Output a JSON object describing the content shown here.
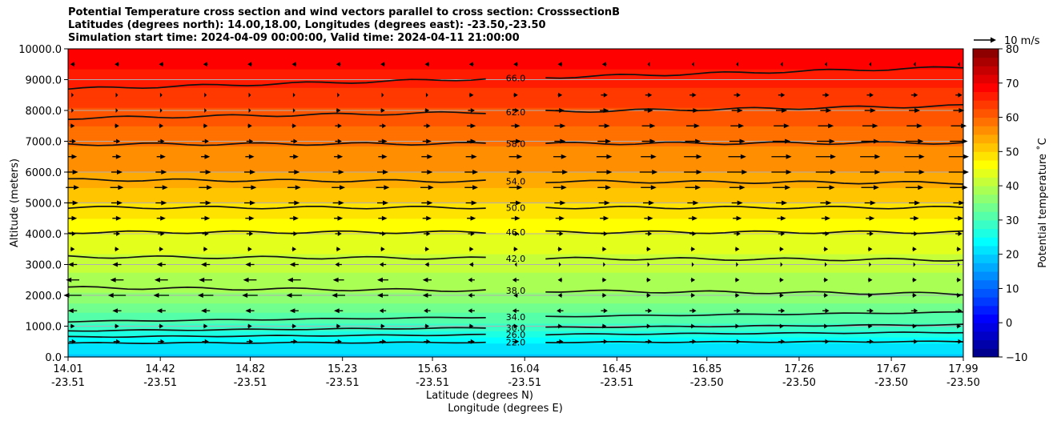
{
  "chart_data": {
    "type": "contour",
    "title_lines": [
      "Potential Temperature cross section and wind vectors parallel to cross section: CrosssectionB",
      "Latitudes (degrees north): 14.00,18.00, Longitudes (degrees east): -23.50,-23.50",
      "Simulation start time: 2024-04-09 00:00:00, Valid time: 2024-04-11 21:00:00"
    ],
    "ylabel": "Altitude (meters)",
    "xlabel_lat": "Latitude (degrees N)",
    "xlabel_lon": "Longitude (degrees E)",
    "ylim": [
      0,
      10000
    ],
    "xlim": [
      14.01,
      17.99
    ],
    "y_ticks": [
      {
        "value": 0,
        "label": "0.0"
      },
      {
        "value": 1000,
        "label": "1000.0"
      },
      {
        "value": 2000,
        "label": "2000.0"
      },
      {
        "value": 3000,
        "label": "3000.0"
      },
      {
        "value": 4000,
        "label": "4000.0"
      },
      {
        "value": 5000,
        "label": "5000.0"
      },
      {
        "value": 6000,
        "label": "6000.0"
      },
      {
        "value": 7000,
        "label": "7000.0"
      },
      {
        "value": 8000,
        "label": "8000.0"
      },
      {
        "value": 9000,
        "label": "9000.0"
      },
      {
        "value": 10000,
        "label": "10000.0"
      }
    ],
    "x_ticks": [
      {
        "value": 14.01,
        "lat": "14.01",
        "lon": "-23.51"
      },
      {
        "value": 14.42,
        "lat": "14.42",
        "lon": "-23.51"
      },
      {
        "value": 14.82,
        "lat": "14.82",
        "lon": "-23.51"
      },
      {
        "value": 15.23,
        "lat": "15.23",
        "lon": "-23.51"
      },
      {
        "value": 15.63,
        "lat": "15.63",
        "lon": "-23.51"
      },
      {
        "value": 16.04,
        "lat": "16.04",
        "lon": "-23.51"
      },
      {
        "value": 16.45,
        "lat": "16.45",
        "lon": "-23.51"
      },
      {
        "value": 16.85,
        "lat": "16.85",
        "lon": "-23.50"
      },
      {
        "value": 17.26,
        "lat": "17.26",
        "lon": "-23.50"
      },
      {
        "value": 17.67,
        "lat": "17.67",
        "lon": "-23.50"
      },
      {
        "value": 17.99,
        "lat": "17.99",
        "lon": "-23.50"
      }
    ],
    "grid": "horizontal",
    "contours": [
      {
        "label": "22.0",
        "left_alt": 450,
        "right_alt": 500
      },
      {
        "label": "26.0",
        "left_alt": 650,
        "right_alt": 800
      },
      {
        "label": "30.0",
        "left_alt": 850,
        "right_alt": 1050
      },
      {
        "label": "34.0",
        "left_alt": 1150,
        "right_alt": 1450
      },
      {
        "label": "38.0",
        "left_alt": 2250,
        "right_alt": 2050
      },
      {
        "label": "42.0",
        "left_alt": 3250,
        "right_alt": 3150
      },
      {
        "label": "46.0",
        "left_alt": 4050,
        "right_alt": 4050
      },
      {
        "label": "50.0",
        "left_alt": 4850,
        "right_alt": 4850
      },
      {
        "label": "54.0",
        "left_alt": 5750,
        "right_alt": 5650
      },
      {
        "label": "58.0",
        "left_alt": 6900,
        "right_alt": 6950
      },
      {
        "label": "62.0",
        "left_alt": 7750,
        "right_alt": 8150
      },
      {
        "label": "66.0",
        "left_alt": 8700,
        "right_alt": 9400
      }
    ],
    "temperature_levels": [
      {
        "alt": 0,
        "temp": 19
      },
      {
        "alt": 500,
        "temp": 23
      },
      {
        "alt": 1000,
        "temp": 29
      },
      {
        "alt": 2000,
        "temp": 37
      },
      {
        "alt": 3000,
        "temp": 41
      },
      {
        "alt": 4000,
        "temp": 45
      },
      {
        "alt": 5000,
        "temp": 50
      },
      {
        "alt": 6000,
        "temp": 55
      },
      {
        "alt": 7000,
        "temp": 58
      },
      {
        "alt": 8000,
        "temp": 62
      },
      {
        "alt": 9000,
        "temp": 66
      },
      {
        "alt": 10000,
        "temp": 70
      }
    ],
    "terrain": {
      "center": 15.1,
      "half_width": 0.13,
      "peak_alt": 200
    },
    "wind_rows": [
      {
        "alt": 500,
        "u": [
          3,
          3,
          3,
          3,
          3,
          3,
          3,
          3,
          3,
          3,
          3,
          3,
          3,
          3,
          3,
          3,
          3,
          3,
          3,
          3,
          3
        ]
      },
      {
        "alt": 1000,
        "u": [
          2,
          2,
          2,
          2,
          2,
          2,
          2,
          2,
          2,
          2,
          2,
          2,
          2,
          2,
          2,
          2,
          2,
          2,
          2,
          2,
          2
        ]
      },
      {
        "alt": 1500,
        "u": [
          -4,
          -4,
          -4,
          -4,
          -4,
          -4,
          -4,
          -3,
          -3,
          -3,
          -3,
          -3,
          3,
          3,
          3,
          3,
          3,
          3,
          3,
          3,
          3
        ]
      },
      {
        "alt": 2000,
        "u": [
          -8,
          -8,
          -7,
          -7,
          -7,
          -7,
          -6,
          -5,
          -4,
          -3,
          -2,
          -2,
          2,
          2,
          2,
          2,
          2,
          2,
          2,
          2,
          2
        ]
      },
      {
        "alt": 2500,
        "u": [
          -6,
          -6,
          -6,
          -6,
          -6,
          -6,
          -5,
          -5,
          -4,
          -3,
          -3,
          -2,
          2,
          2,
          2,
          2,
          2,
          2,
          2,
          2,
          2
        ]
      },
      {
        "alt": 3000,
        "u": [
          -4,
          -4,
          -4,
          -4,
          -4,
          -4,
          -3,
          -3,
          -2,
          -2,
          -1,
          1,
          1,
          1,
          1,
          1,
          1,
          1,
          1,
          1,
          1
        ]
      },
      {
        "alt": 3500,
        "u": [
          2,
          2,
          2,
          2,
          2,
          2,
          2,
          2,
          2,
          2,
          2,
          2,
          2,
          2,
          2,
          2,
          2,
          2,
          2,
          2,
          2
        ]
      },
      {
        "alt": 4000,
        "u": [
          3,
          3,
          3,
          3,
          3,
          3,
          3,
          3,
          3,
          3,
          3,
          3,
          3,
          3,
          3,
          3,
          3,
          3,
          3,
          3,
          3
        ]
      },
      {
        "alt": 4500,
        "u": [
          4,
          4,
          4,
          4,
          4,
          4,
          4,
          4,
          4,
          4,
          4,
          4,
          4,
          4,
          4,
          4,
          4,
          4,
          4,
          4,
          4
        ]
      },
      {
        "alt": 5000,
        "u": [
          5,
          5,
          5,
          5,
          5,
          5,
          5,
          5,
          5,
          5,
          5,
          5,
          5,
          5,
          5,
          5,
          5,
          5,
          5,
          5,
          5
        ]
      },
      {
        "alt": 5500,
        "u": [
          6,
          6,
          6,
          6,
          6,
          6,
          6,
          6,
          6,
          6,
          6,
          6,
          6,
          7,
          7,
          7,
          8,
          8,
          8,
          8,
          8
        ]
      },
      {
        "alt": 6000,
        "u": [
          5,
          5,
          5,
          5,
          5,
          5,
          5,
          5,
          5,
          6,
          6,
          7,
          7,
          8,
          8,
          9,
          9,
          9,
          9,
          9,
          9
        ]
      },
      {
        "alt": 6500,
        "u": [
          4,
          4,
          4,
          4,
          4,
          4,
          4,
          4,
          5,
          5,
          6,
          6,
          7,
          7,
          8,
          8,
          9,
          9,
          9,
          9,
          9
        ]
      },
      {
        "alt": 7000,
        "u": [
          3,
          3,
          3,
          3,
          3,
          3,
          3,
          4,
          4,
          4,
          5,
          5,
          6,
          6,
          7,
          7,
          8,
          8,
          8,
          8,
          8
        ]
      },
      {
        "alt": 7500,
        "u": [
          2,
          2,
          2,
          2,
          2,
          2,
          3,
          3,
          3,
          4,
          4,
          5,
          5,
          6,
          6,
          6,
          7,
          7,
          7,
          7,
          7
        ]
      },
      {
        "alt": 8000,
        "u": [
          1,
          1,
          1,
          1,
          1,
          1,
          2,
          2,
          2,
          3,
          3,
          4,
          4,
          4,
          5,
          5,
          5,
          5,
          5,
          5,
          5
        ]
      },
      {
        "alt": 8500,
        "u": [
          1,
          1,
          1,
          1,
          1,
          1,
          1,
          1,
          1,
          2,
          2,
          2,
          3,
          3,
          3,
          3,
          3,
          3,
          3,
          3,
          3
        ]
      },
      {
        "alt": 9500,
        "u": [
          -2,
          -2,
          -2,
          -2,
          -2,
          -2,
          -2,
          -2,
          -2,
          -2,
          -2,
          -2,
          -2,
          -1,
          -1,
          -1,
          -1,
          -1,
          -1,
          -1,
          -1
        ]
      }
    ],
    "wind_reference": {
      "label": "10 m/s",
      "value": 10
    },
    "colorbar": {
      "label": "Potential temperature ˚C",
      "vmin": -10,
      "vmax": 80,
      "ticks": [
        {
          "value": -10,
          "label": "−10"
        },
        {
          "value": 0,
          "label": "0"
        },
        {
          "value": 10,
          "label": "10"
        },
        {
          "value": 20,
          "label": "20"
        },
        {
          "value": 30,
          "label": "30"
        },
        {
          "value": 40,
          "label": "40"
        },
        {
          "value": 50,
          "label": "50"
        },
        {
          "value": 60,
          "label": "60"
        },
        {
          "value": 70,
          "label": "70"
        },
        {
          "value": 80,
          "label": "80"
        }
      ],
      "colormap": "jet"
    }
  }
}
